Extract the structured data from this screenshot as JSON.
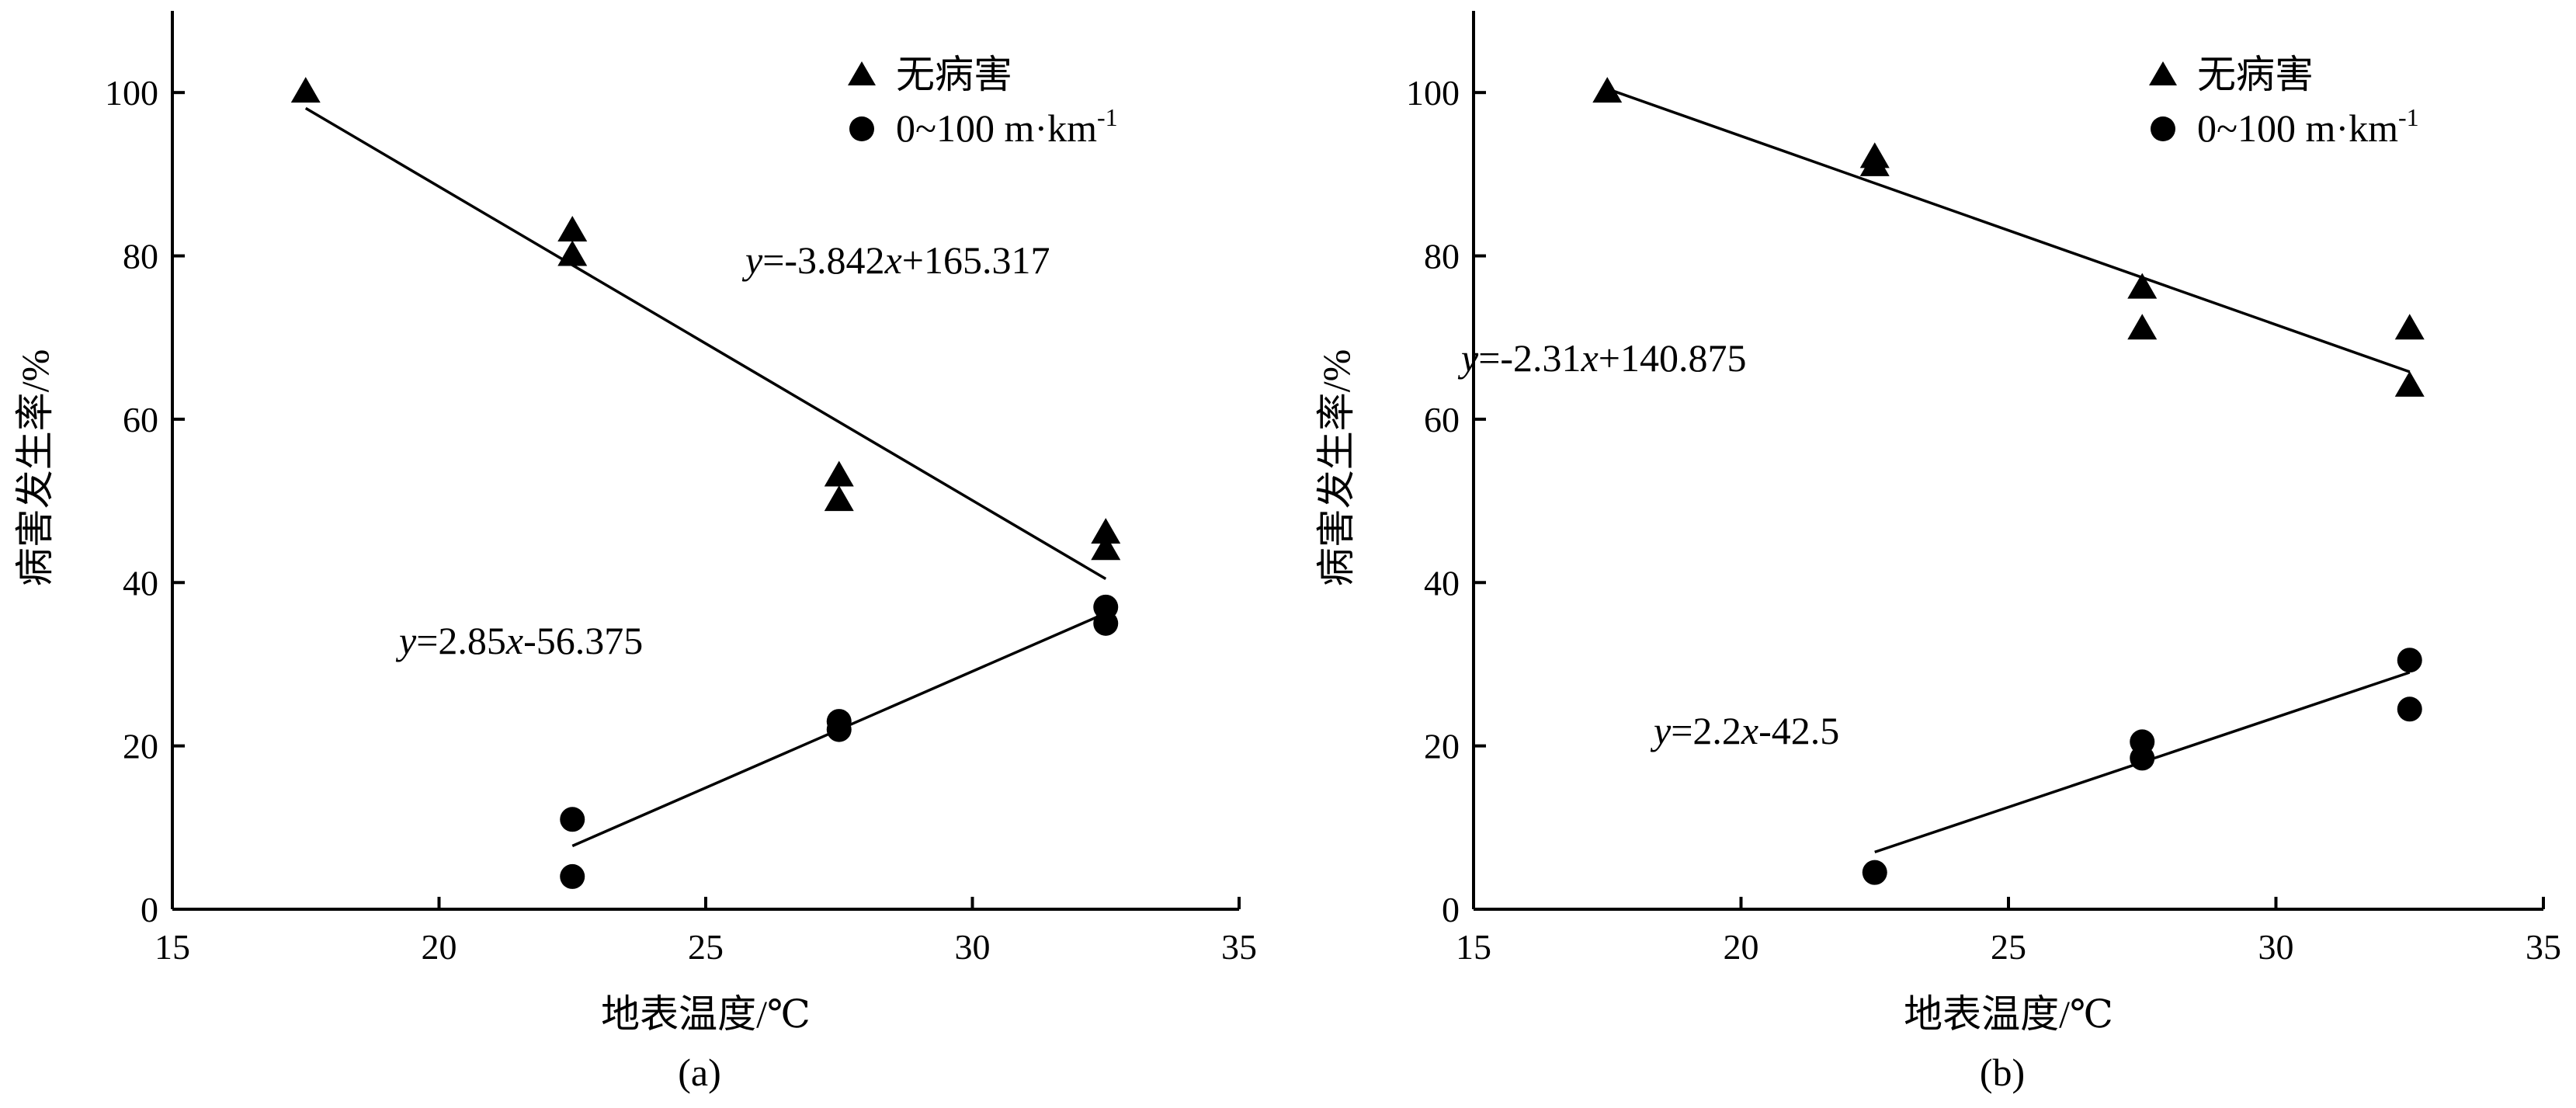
{
  "chart_data": [
    {
      "type": "scatter",
      "panel_label": "(a)",
      "xlabel": "地表温度/℃",
      "ylabel": "病害发生率/%",
      "xlim": [
        15,
        35
      ],
      "ylim": [
        0,
        110
      ],
      "xticks": [
        15,
        20,
        25,
        30,
        35
      ],
      "yticks": [
        0,
        20,
        40,
        60,
        80,
        100
      ],
      "legend": {
        "placement": "top-right"
      },
      "series": [
        {
          "name": "无病害",
          "marker": "triangle",
          "points": [
            [
              17.5,
              100
            ],
            [
              22.5,
              83
            ],
            [
              22.5,
              80
            ],
            [
              27.5,
              53
            ],
            [
              27.5,
              50
            ],
            [
              32.5,
              46
            ],
            [
              32.5,
              44
            ]
          ],
          "fit": {
            "x": [
              17.5,
              32.5
            ],
            "slope": -3.842,
            "intercept": 165.317,
            "label": {
              "y": "y",
              "eq": "=-3.842",
              "x": "x",
              "tail": "+165.317"
            }
          }
        },
        {
          "name": "0~100 m·km",
          "name_sup": "-1",
          "marker": "circle",
          "points": [
            [
              22.5,
              11
            ],
            [
              22.5,
              4
            ],
            [
              27.5,
              23
            ],
            [
              27.5,
              22
            ],
            [
              32.5,
              37
            ],
            [
              32.5,
              35
            ]
          ],
          "fit": {
            "x": [
              22.5,
              32.5
            ],
            "slope": 2.85,
            "intercept": -56.375,
            "label": {
              "y": "y",
              "eq": "=2.85",
              "x": "x",
              "tail": "-56.375"
            }
          }
        }
      ]
    },
    {
      "type": "scatter",
      "panel_label": "(b)",
      "xlabel": "地表温度/℃",
      "ylabel": "病害发生率/%",
      "xlim": [
        15,
        35
      ],
      "ylim": [
        0,
        110
      ],
      "xticks": [
        15,
        20,
        25,
        30,
        35
      ],
      "yticks": [
        0,
        20,
        40,
        60,
        80,
        100
      ],
      "legend": {
        "placement": "top-right"
      },
      "series": [
        {
          "name": "无病害",
          "marker": "triangle",
          "points": [
            [
              17.5,
              100
            ],
            [
              22.5,
              92
            ],
            [
              22.5,
              91
            ],
            [
              27.5,
              76
            ],
            [
              27.5,
              71
            ],
            [
              32.5,
              71
            ],
            [
              32.5,
              64
            ]
          ],
          "fit": {
            "x": [
              17.5,
              32.5
            ],
            "slope": -2.31,
            "intercept": 140.875,
            "label": {
              "y": "y",
              "eq": "=-2.31",
              "x": "x",
              "tail": "+140.875"
            }
          }
        },
        {
          "name": "0~100 m·km",
          "name_sup": "-1",
          "marker": "circle",
          "points": [
            [
              22.5,
              4.5
            ],
            [
              27.5,
              20.5
            ],
            [
              27.5,
              18.5
            ],
            [
              32.5,
              30.5
            ],
            [
              32.5,
              24.5
            ]
          ],
          "fit": {
            "x": [
              22.5,
              32.5
            ],
            "slope": 2.2,
            "intercept": -42.5,
            "label": {
              "y": "y",
              "eq": "=2.2",
              "x": "x",
              "tail": "-42.5"
            }
          }
        }
      ]
    }
  ]
}
